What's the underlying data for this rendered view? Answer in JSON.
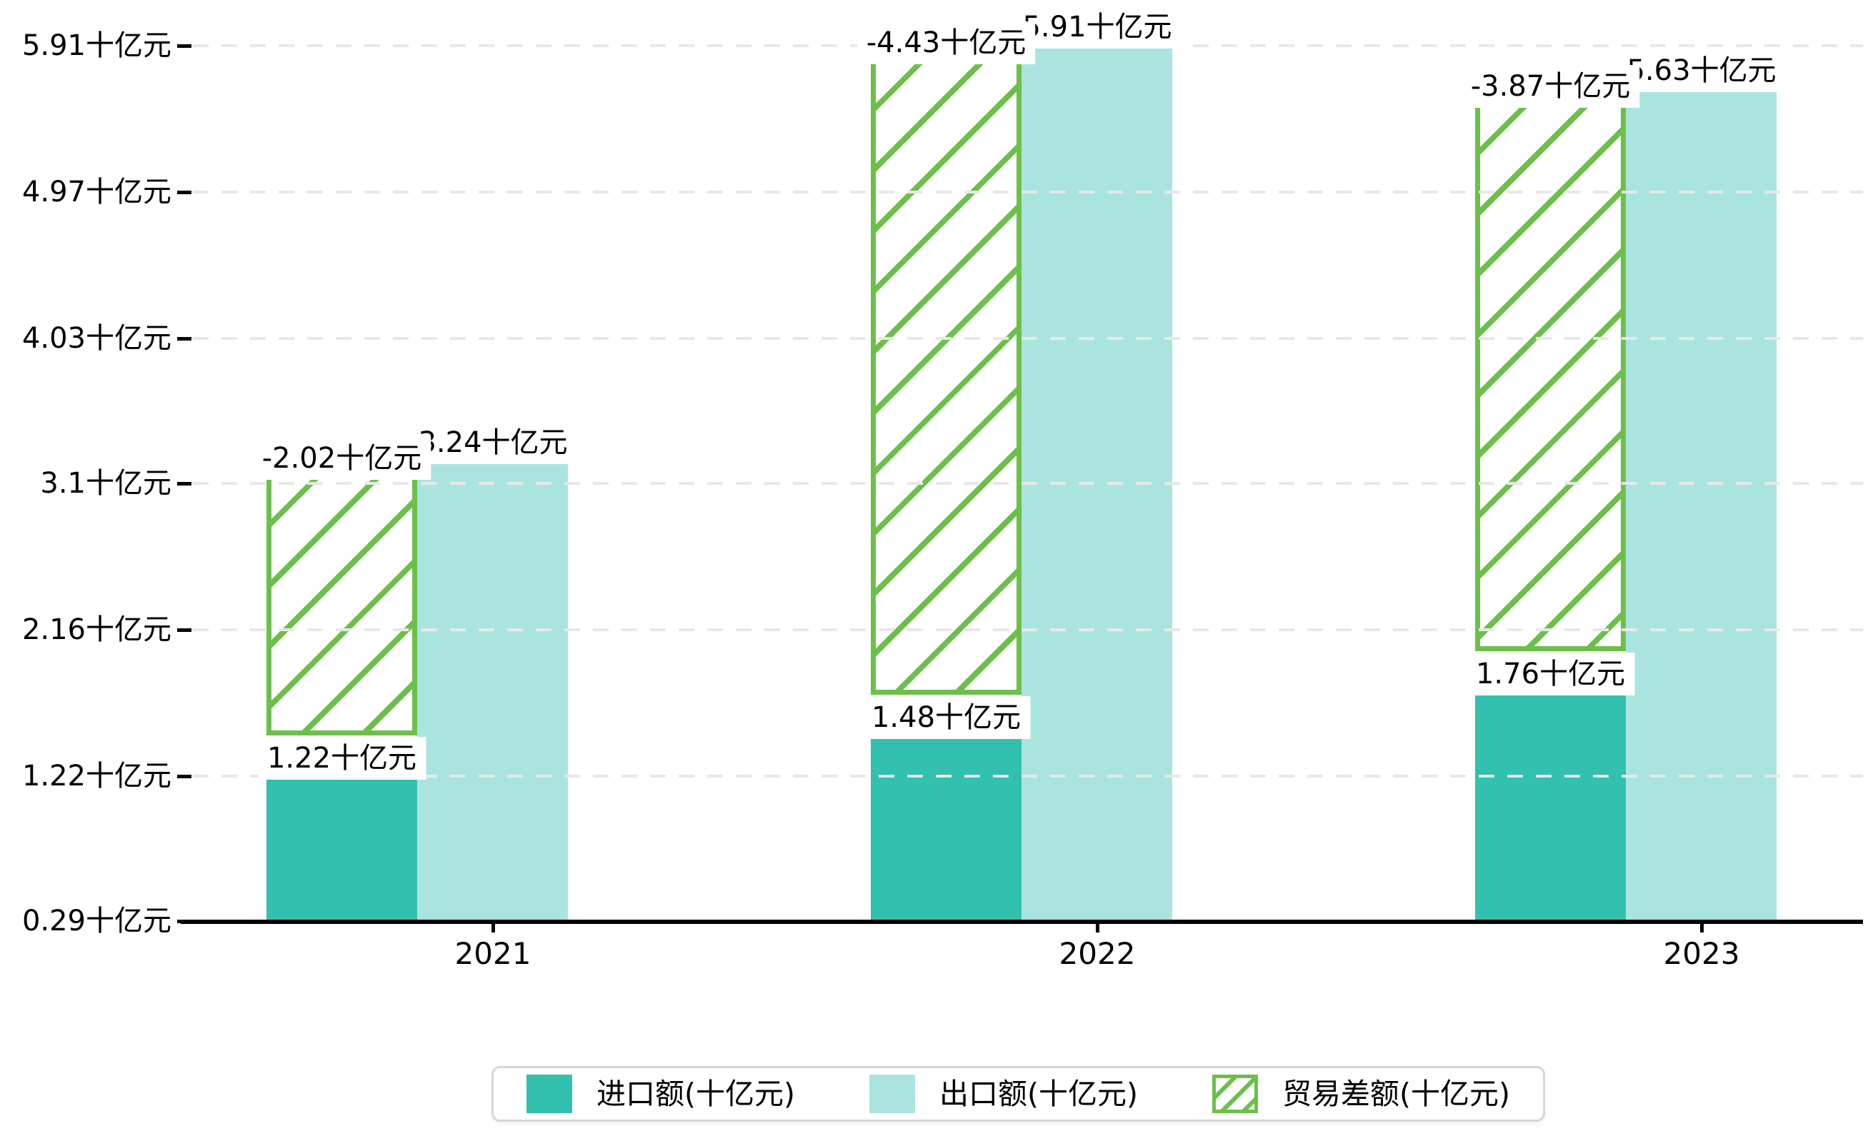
{
  "figure": {
    "background": "#ffffff"
  },
  "chart_data": {
    "type": "bar",
    "title": "",
    "categories": [
      "2021",
      "2022",
      "2023"
    ],
    "series": [
      {
        "name": "进口额(十亿元)",
        "style": "solid",
        "color": "#32c0af",
        "values": [
          1.22,
          1.48,
          1.76
        ],
        "data_labels": [
          "1.22十亿元",
          "1.48十亿元",
          "1.76十亿元"
        ]
      },
      {
        "name": "出口额(十亿元)",
        "style": "solid",
        "color": "#a9e5de",
        "values": [
          3.24,
          5.91,
          5.63
        ],
        "data_labels": [
          "3.24十亿元",
          "5.91十亿元",
          "5.63十亿元"
        ]
      },
      {
        "name": "贸易差额(十亿元)",
        "style": "hatched",
        "color": "#6cc04a",
        "values": [
          -2.02,
          -4.43,
          -3.87
        ],
        "data_labels": [
          "-2.02十亿元",
          "-4.43十亿元",
          "-3.87十亿元"
        ]
      }
    ],
    "y_axis": {
      "unit": "十亿元",
      "baseline_value": 0.29,
      "top_value": 5.91,
      "ticks": [
        {
          "value": 5.91,
          "label": "5.91十亿元"
        },
        {
          "value": 4.97,
          "label": "4.97十亿元"
        },
        {
          "value": 4.03,
          "label": "4.03十亿元"
        },
        {
          "value": 3.1,
          "label": "3.1十亿元"
        },
        {
          "value": 2.16,
          "label": "2.16十亿元"
        },
        {
          "value": 1.22,
          "label": "1.22十亿元"
        },
        {
          "value": 0.29,
          "label": "0.29十亿元"
        }
      ]
    },
    "grid": {
      "horizontal_dashed": true,
      "color": "#e8e8e8"
    },
    "legend": {
      "position": "bottom",
      "entries": [
        "进口额(十亿元)",
        "出口额(十亿元)",
        "贸易差额(十亿元)"
      ]
    },
    "colors": {
      "import": "#32c0af",
      "export": "#a9e5de",
      "trade_diff": "#6cc04a",
      "grid": "#e8e8e8",
      "axis": "#000000",
      "label_bg": "#ffffff",
      "legend_border": "#d7d7d7"
    }
  }
}
